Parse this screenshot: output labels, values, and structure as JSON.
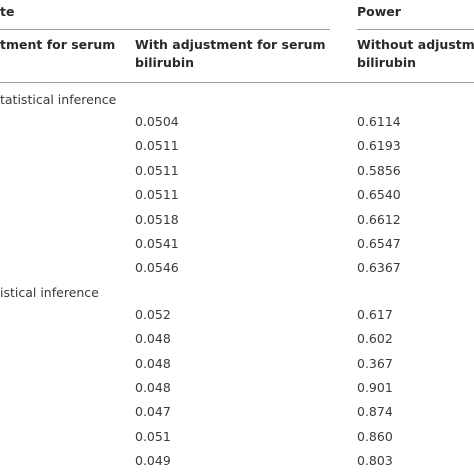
{
  "header": {
    "group_left": "te",
    "group_right": "Power",
    "columns": [
      [
        "tment for serum"
      ],
      [
        "With adjustment for serum",
        "bilirubin"
      ],
      [
        "Without adjustm",
        "bilirubin"
      ]
    ]
  },
  "sections": [
    {
      "label": "tatistical inference",
      "rows": [
        [
          "0.0504",
          "0.6114"
        ],
        [
          "0.0511",
          "0.6193"
        ],
        [
          "0.0511",
          "0.5856"
        ],
        [
          "0.0511",
          "0.6540"
        ],
        [
          "0.0518",
          "0.6612"
        ],
        [
          "0.0541",
          "0.6547"
        ],
        [
          "0.0546",
          "0.6367"
        ]
      ]
    },
    {
      "label": "istical inference",
      "rows": [
        [
          "0.052",
          "0.617"
        ],
        [
          "0.048",
          "0.602"
        ],
        [
          "0.048",
          "0.367"
        ],
        [
          "0.048",
          "0.901"
        ],
        [
          "0.047",
          "0.874"
        ],
        [
          "0.051",
          "0.860"
        ],
        [
          "0.049",
          "0.803"
        ]
      ]
    }
  ]
}
